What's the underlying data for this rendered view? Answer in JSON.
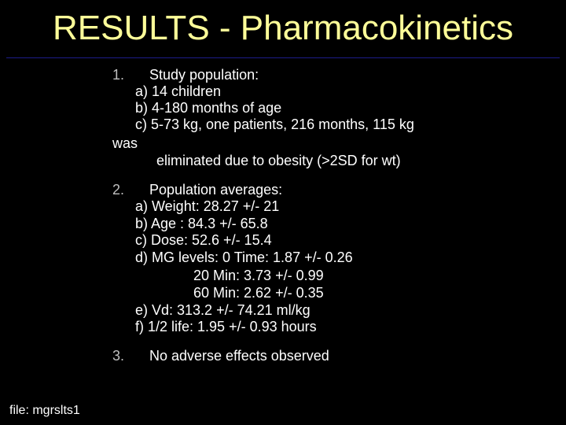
{
  "title": "RESULTS - Pharmacokinetics",
  "items": [
    {
      "number": "1.",
      "heading": "Study population:",
      "lines": [
        "a) 14 children",
        "b) 4-180 months of age",
        "c) 5-73 kg, one patients, 216 months, 115 kg",
        "was",
        "eliminated due to obesity (>2SD for wt)"
      ]
    },
    {
      "number": "2.",
      "heading": "Population averages:",
      "lines": [
        "a) Weight: 28.27 +/- 21",
        "b) Age : 84.3 +/- 65.8",
        "c) Dose: 52.6 +/- 15.4",
        "d) MG levels: 0 Time: 1.87 +/- 0.26",
        "20 Min: 3.73 +/- 0.99",
        "60 Min: 2.62 +/- 0.35",
        "e) Vd: 313.2 +/- 74.21 ml/kg",
        "f) 1/2 life: 1.95 +/- 0.93 hours"
      ]
    },
    {
      "number": "3.",
      "heading": "No adverse effects observed",
      "lines": []
    }
  ],
  "footer": "file: mgrslts1"
}
